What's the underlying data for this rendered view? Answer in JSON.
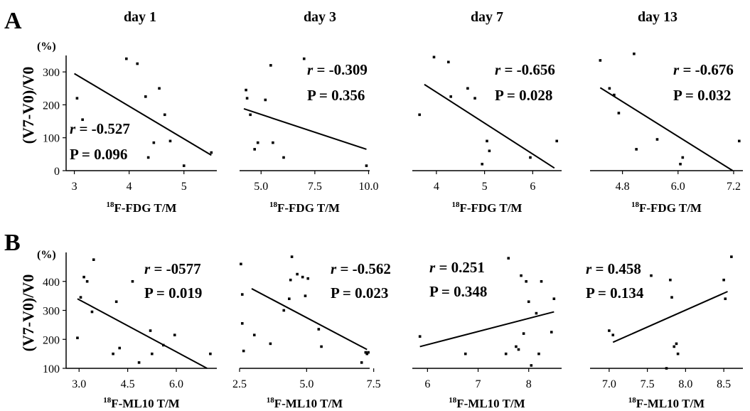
{
  "panel_letters": [
    "A",
    "B"
  ],
  "day_titles": [
    "day 1",
    "day 3",
    "day 7",
    "day 13"
  ],
  "y_axis_label": "(V7-V0)/V0",
  "y_unit": "(%)",
  "chart_data": [
    {
      "row": "A",
      "col": 0,
      "type": "scatter",
      "xlabel_sup": "18",
      "xlabel_main": "F-FDG T/M",
      "ylabel": "(V7-V0)/V0",
      "xlim": [
        2.85,
        5.6
      ],
      "ylim": [
        0,
        350
      ],
      "xticks": [
        "3",
        "4",
        "5"
      ],
      "xtick_values": [
        3,
        4,
        5
      ],
      "yticks": [
        "0",
        "100",
        "200",
        "300"
      ],
      "ytick_values": [
        0,
        100,
        200,
        300
      ],
      "points": [
        [
          3.05,
          220
        ],
        [
          3.15,
          155
        ],
        [
          3.95,
          340
        ],
        [
          4.15,
          325
        ],
        [
          4.3,
          225
        ],
        [
          4.55,
          250
        ],
        [
          4.65,
          170
        ],
        [
          4.75,
          90
        ],
        [
          4.45,
          85
        ],
        [
          4.35,
          40
        ],
        [
          5.0,
          15
        ],
        [
          5.5,
          55
        ]
      ],
      "fit": [
        [
          3.0,
          295
        ],
        [
          5.5,
          47
        ]
      ],
      "r_label": "r",
      "r_value": "= -0.527",
      "p_text": "P = 0.096"
    },
    {
      "row": "A",
      "col": 1,
      "type": "scatter",
      "xlabel_sup": "18",
      "xlabel_main": "F-FDG T/M",
      "ylabel": "(V7-V0)/V0",
      "xlim": [
        4.0,
        10.05
      ],
      "ylim": [
        0,
        350
      ],
      "xticks": [
        "5.0",
        "7.5",
        "10.0"
      ],
      "xtick_values": [
        5.0,
        7.5,
        10.0
      ],
      "yticks": [],
      "ytick_values": [],
      "points": [
        [
          4.3,
          245
        ],
        [
          4.35,
          220
        ],
        [
          4.5,
          170
        ],
        [
          4.7,
          65
        ],
        [
          4.85,
          85
        ],
        [
          5.2,
          215
        ],
        [
          5.45,
          320
        ],
        [
          5.55,
          85
        ],
        [
          6.05,
          40
        ],
        [
          7.0,
          340
        ],
        [
          9.9,
          15
        ]
      ],
      "fit": [
        [
          4.2,
          188
        ],
        [
          9.9,
          65
        ]
      ],
      "r_label": "r",
      "r_value": "= -0.309",
      "p_text": "P = 0.356"
    },
    {
      "row": "A",
      "col": 2,
      "type": "scatter",
      "xlabel_sup": "18",
      "xlabel_main": "F-FDG T/M",
      "ylabel": "(V7-V0)/V0",
      "xlim": [
        3.5,
        6.6
      ],
      "ylim": [
        0,
        350
      ],
      "xticks": [
        "4",
        "5",
        "6"
      ],
      "xtick_values": [
        4,
        5,
        6
      ],
      "yticks": [],
      "ytick_values": [],
      "points": [
        [
          3.65,
          170
        ],
        [
          3.95,
          345
        ],
        [
          4.25,
          330
        ],
        [
          4.3,
          225
        ],
        [
          4.65,
          250
        ],
        [
          4.8,
          220
        ],
        [
          4.95,
          20
        ],
        [
          5.05,
          90
        ],
        [
          5.1,
          60
        ],
        [
          5.95,
          40
        ],
        [
          6.5,
          90
        ]
      ],
      "fit": [
        [
          3.75,
          262
        ],
        [
          6.45,
          8
        ]
      ],
      "r_label": "r",
      "r_value": "= -0.656",
      "p_text": "P = 0.028"
    },
    {
      "row": "A",
      "col": 3,
      "type": "scatter",
      "xlabel_sup": "18",
      "xlabel_main": "F-FDG T/M",
      "ylabel": "(V7-V0)/V0",
      "xlim": [
        4.1,
        7.4
      ],
      "ylim": [
        0,
        350
      ],
      "xticks": [
        "4.8",
        "6.0",
        "7.2"
      ],
      "xtick_values": [
        4.8,
        6.0,
        7.2
      ],
      "yticks": [],
      "ytick_values": [],
      "points": [
        [
          4.32,
          335
        ],
        [
          4.52,
          250
        ],
        [
          4.62,
          230
        ],
        [
          4.72,
          175
        ],
        [
          5.05,
          355
        ],
        [
          5.1,
          65
        ],
        [
          5.55,
          95
        ],
        [
          6.05,
          20
        ],
        [
          6.1,
          40
        ],
        [
          7.32,
          90
        ]
      ],
      "fit": [
        [
          4.32,
          252
        ],
        [
          7.18,
          0
        ]
      ],
      "r_label": "r",
      "r_value": "= -0.676",
      "p_text": "P = 0.032"
    },
    {
      "row": "B",
      "col": 0,
      "type": "scatter",
      "xlabel_sup": "18",
      "xlabel_main": "F-ML10 T/M",
      "ylabel": "(V7-V0)/V0",
      "xlim": [
        2.6,
        7.25
      ],
      "ylim": [
        100,
        500
      ],
      "xticks": [
        "3.0",
        "4.5",
        "6.0"
      ],
      "xtick_values": [
        3.0,
        4.5,
        6.0
      ],
      "yticks": [
        "100",
        "200",
        "300",
        "400"
      ],
      "ytick_values": [
        100,
        200,
        300,
        400
      ],
      "points": [
        [
          2.95,
          205
        ],
        [
          3.05,
          345
        ],
        [
          3.15,
          415
        ],
        [
          3.25,
          400
        ],
        [
          3.4,
          295
        ],
        [
          3.45,
          475
        ],
        [
          4.05,
          150
        ],
        [
          4.15,
          330
        ],
        [
          4.25,
          170
        ],
        [
          4.65,
          400
        ],
        [
          4.85,
          120
        ],
        [
          5.2,
          230
        ],
        [
          5.25,
          150
        ],
        [
          5.6,
          180
        ],
        [
          5.95,
          215
        ],
        [
          7.05,
          150
        ]
      ],
      "fit": [
        [
          2.95,
          340
        ],
        [
          6.95,
          100
        ]
      ],
      "r_label": "r",
      "r_value": "= -0577",
      "p_text": "P = 0.019"
    },
    {
      "row": "B",
      "col": 1,
      "type": "scatter",
      "xlabel_sup": "18",
      "xlabel_main": "F-ML10 T/M",
      "ylabel": "(V7-V0)/V0",
      "xlim": [
        2.5,
        7.35
      ],
      "ylim": [
        100,
        500
      ],
      "xticks": [
        "2.5",
        "5.0",
        "7.5"
      ],
      "xtick_values": [
        2.5,
        5.0,
        7.5
      ],
      "yticks": [],
      "ytick_values": [],
      "points": [
        [
          2.55,
          460
        ],
        [
          2.6,
          355
        ],
        [
          2.6,
          255
        ],
        [
          2.65,
          160
        ],
        [
          3.05,
          215
        ],
        [
          3.65,
          185
        ],
        [
          4.15,
          300
        ],
        [
          4.35,
          340
        ],
        [
          4.4,
          405
        ],
        [
          4.45,
          485
        ],
        [
          4.65,
          425
        ],
        [
          4.85,
          415
        ],
        [
          4.95,
          350
        ],
        [
          5.05,
          410
        ],
        [
          5.45,
          235
        ],
        [
          5.55,
          175
        ],
        [
          7.05,
          120
        ],
        [
          7.2,
          155
        ],
        [
          7.25,
          150
        ],
        [
          7.3,
          155
        ]
      ],
      "fit": [
        [
          2.95,
          375
        ],
        [
          7.25,
          165
        ]
      ],
      "r_label": "r",
      "r_value": "= -0.562",
      "p_text": "P = 0.023"
    },
    {
      "row": "B",
      "col": 2,
      "type": "scatter",
      "xlabel_sup": "18",
      "xlabel_main": "F-ML10 T/M",
      "ylabel": "(V7-V0)/V0",
      "xlim": [
        5.7,
        8.65
      ],
      "ylim": [
        100,
        500
      ],
      "xticks": [
        "6",
        "7",
        "8"
      ],
      "xtick_values": [
        6,
        7,
        8
      ],
      "yticks": [],
      "ytick_values": [],
      "points": [
        [
          5.85,
          210
        ],
        [
          6.75,
          150
        ],
        [
          7.55,
          150
        ],
        [
          7.6,
          480
        ],
        [
          7.75,
          175
        ],
        [
          7.8,
          165
        ],
        [
          7.85,
          420
        ],
        [
          7.9,
          220
        ],
        [
          7.95,
          400
        ],
        [
          8.0,
          330
        ],
        [
          8.05,
          110
        ],
        [
          8.15,
          290
        ],
        [
          8.2,
          150
        ],
        [
          8.25,
          400
        ],
        [
          8.45,
          225
        ],
        [
          8.5,
          340
        ]
      ],
      "fit": [
        [
          5.85,
          175
        ],
        [
          8.5,
          295
        ]
      ],
      "r_label": "r",
      "r_value": "= 0.251",
      "p_text": "P = 0.348"
    },
    {
      "row": "B",
      "col": 3,
      "type": "scatter",
      "xlabel_sup": "18",
      "xlabel_main": "F-ML10 T/M",
      "ylabel": "(V7-V0)/V0",
      "xlim": [
        6.75,
        8.75
      ],
      "ylim": [
        100,
        500
      ],
      "xticks": [
        "7.0",
        "7.5",
        "8.0",
        "8.5"
      ],
      "xtick_values": [
        7.0,
        7.5,
        8.0,
        8.5
      ],
      "yticks": [],
      "ytick_values": [],
      "points": [
        [
          7.0,
          230
        ],
        [
          7.05,
          215
        ],
        [
          7.55,
          420
        ],
        [
          7.75,
          100
        ],
        [
          7.8,
          405
        ],
        [
          7.82,
          345
        ],
        [
          7.85,
          175
        ],
        [
          7.88,
          185
        ],
        [
          7.9,
          150
        ],
        [
          8.5,
          405
        ],
        [
          8.52,
          340
        ],
        [
          8.6,
          485
        ]
      ],
      "fit": [
        [
          7.05,
          190
        ],
        [
          8.55,
          365
        ]
      ],
      "r_label": "r",
      "r_value": "= 0.458",
      "p_text": "P = 0.134"
    }
  ]
}
